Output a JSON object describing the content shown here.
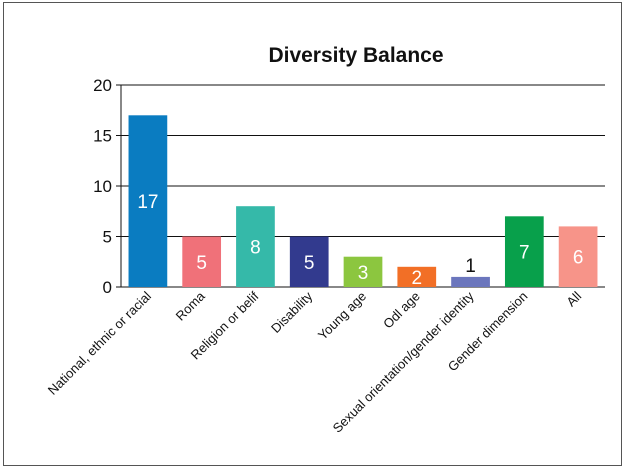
{
  "chart_data": {
    "type": "bar",
    "title": "Diversity Balance",
    "xlabel": "",
    "ylabel": "",
    "ylim": [
      0,
      20
    ],
    "yticks": [
      0,
      5,
      10,
      15,
      20
    ],
    "grid": true,
    "legend": "none",
    "categories": [
      "National, ethnic or racial",
      "Roma",
      "Religion or belif",
      "Disability",
      "Young age",
      "Odl age",
      "Sexual orientation/gender identity",
      "Gender dimension",
      "All"
    ],
    "values": [
      17,
      5,
      8,
      5,
      3,
      2,
      1,
      7,
      6
    ],
    "colors": [
      "#0a7cc1",
      "#f07179",
      "#35b9a9",
      "#323a8e",
      "#8cc63f",
      "#f26f26",
      "#6b76bd",
      "#08a04b",
      "#f79489"
    ],
    "label_colors": [
      "#ffffff",
      "#ffffff",
      "#ffffff",
      "#ffffff",
      "#ffffff",
      "#ffffff",
      "#111111",
      "#ffffff",
      "#ffffff"
    ]
  }
}
